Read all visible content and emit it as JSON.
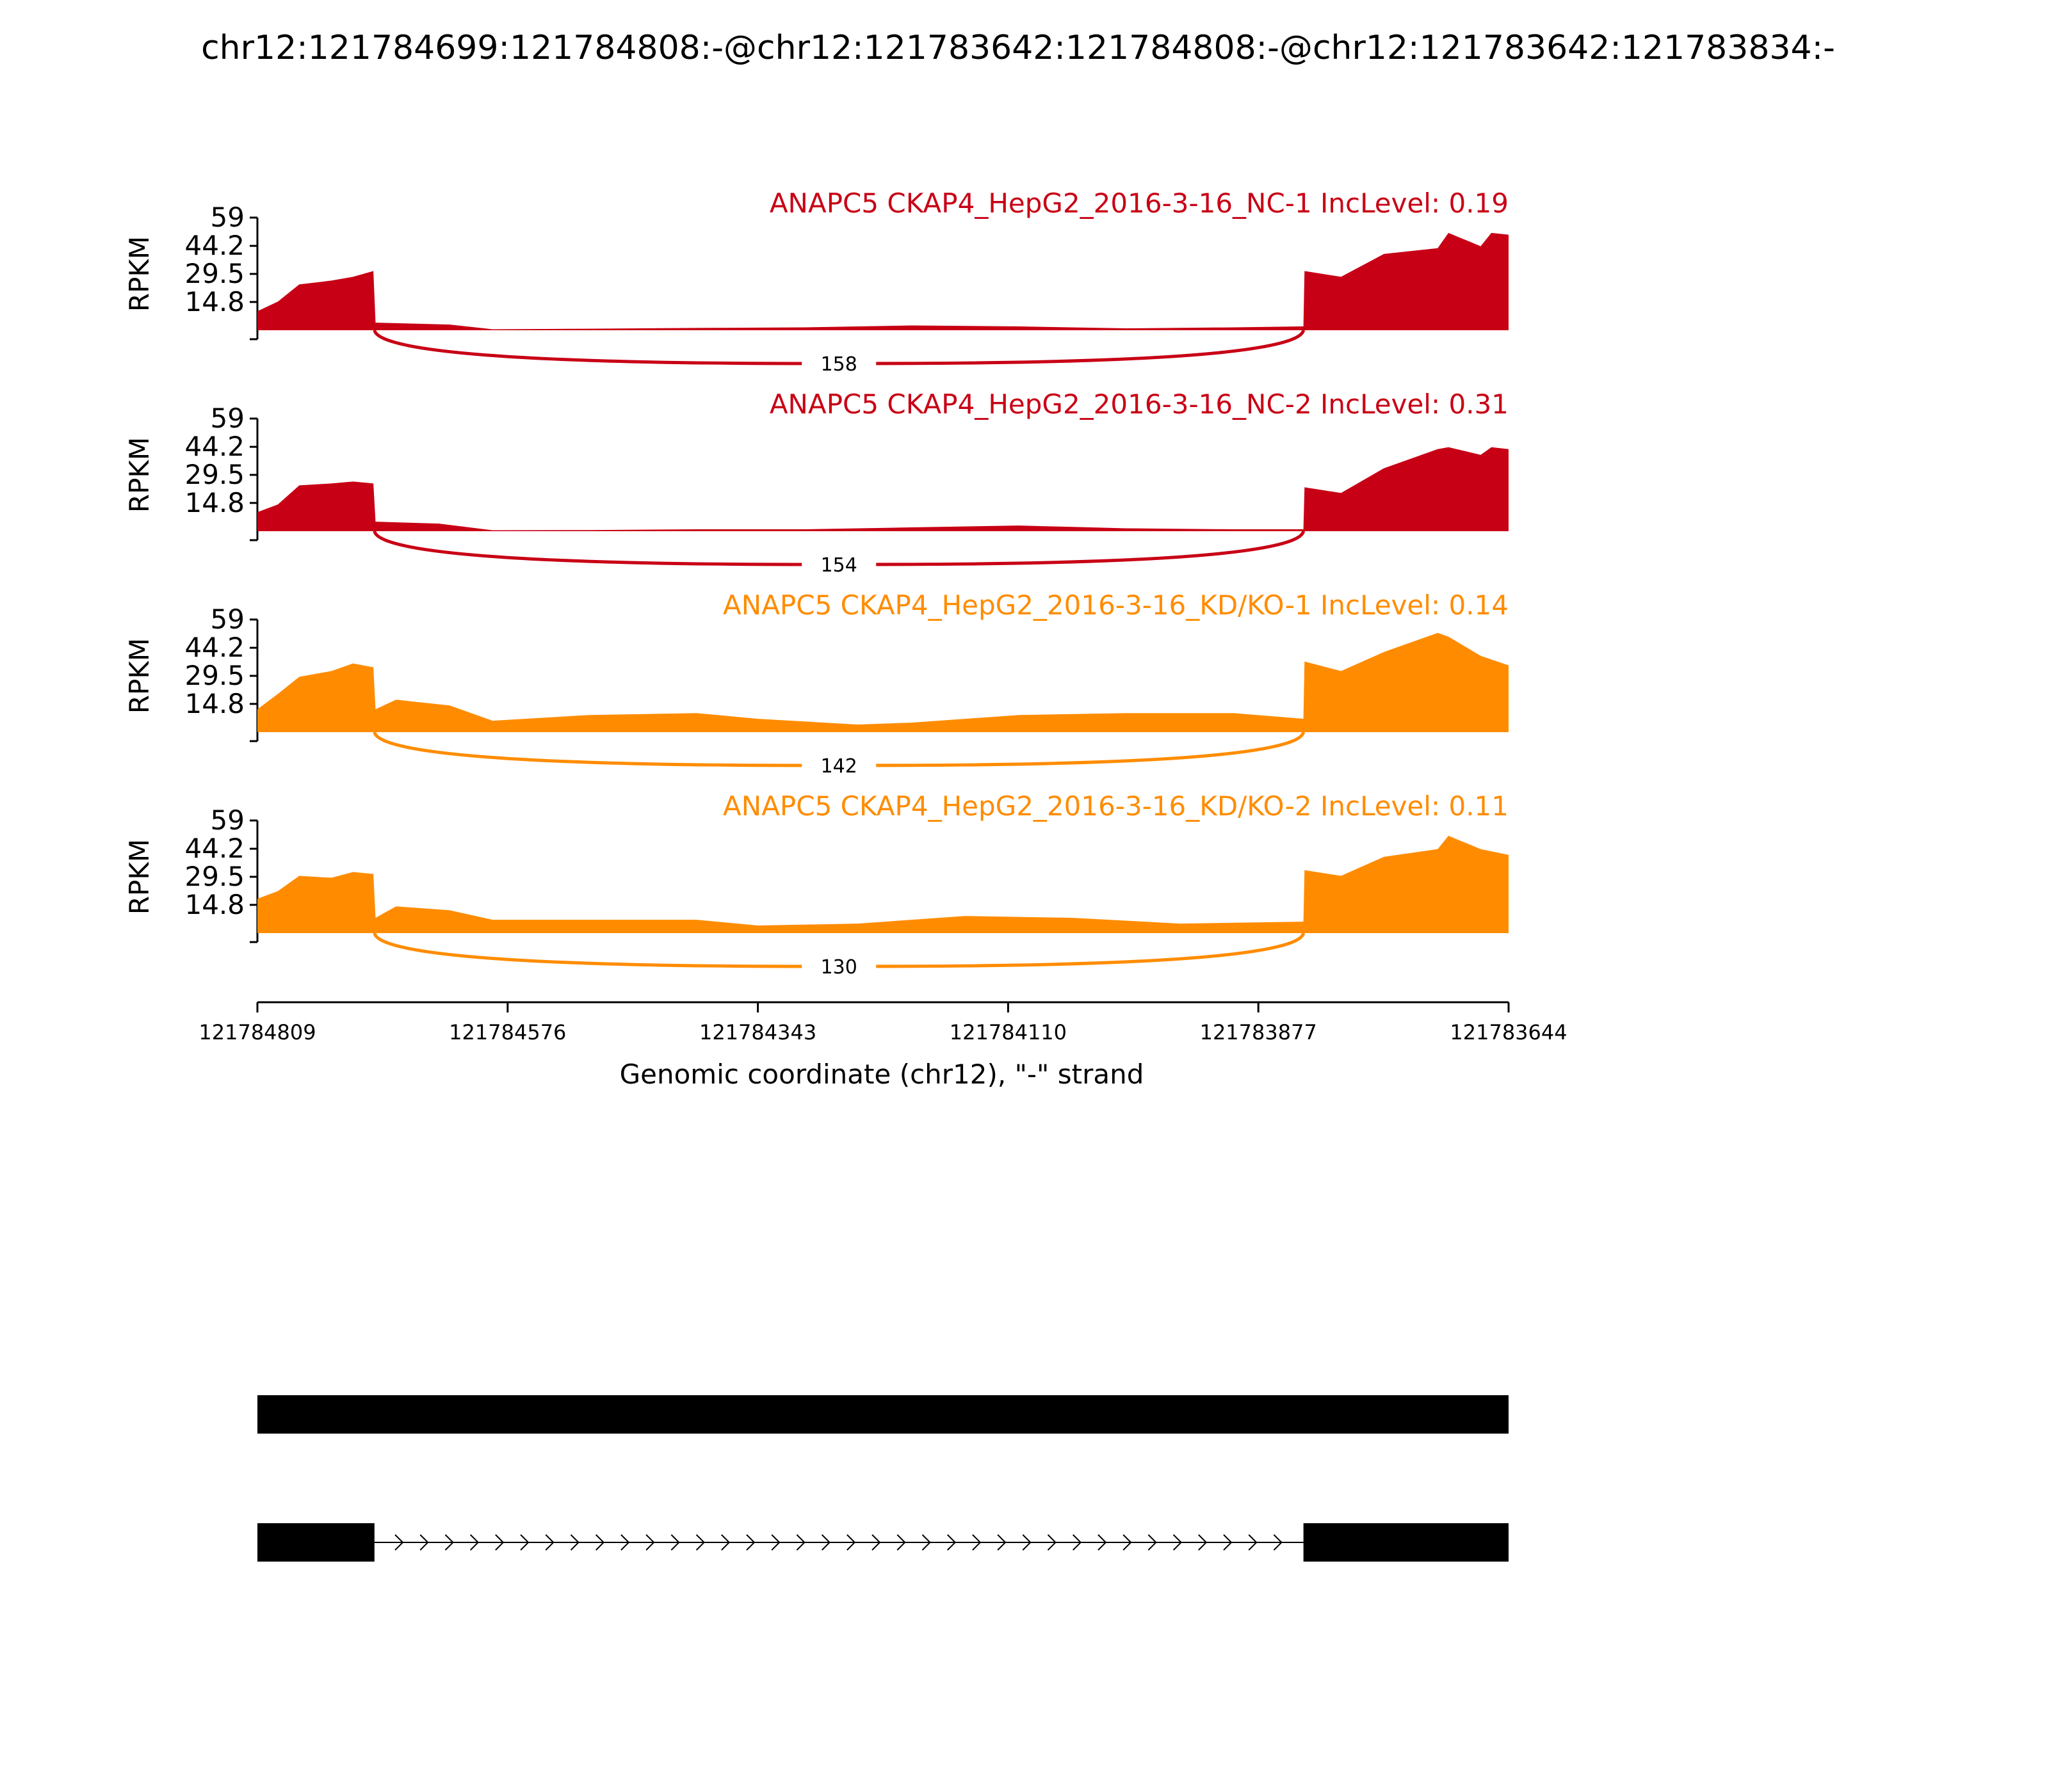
{
  "chart_data": {
    "type": "area",
    "title": "chr12:121784699:121784808:-@chr12:121783642:121784808:-@chr12:121783642:121783834:-",
    "xlabel": "Genomic coordinate (chr12), \"-\" strand",
    "ylabel": "RPKM",
    "x_ticks": [
      "121784809",
      "121784576",
      "121784343",
      "121784110",
      "121783877",
      "121783644"
    ],
    "x_range": [
      121784809,
      121783644
    ],
    "y_ticks": [
      "59",
      "44.2",
      "29.5",
      "14.8"
    ],
    "ylim": [
      0,
      59
    ],
    "series": [
      {
        "name": "ANAPC5 CKAP4_HepG2_2016-3-16_NC-1 IncLevel: 0.19",
        "color": "#c80015",
        "junction_count": "158",
        "points": [
          [
            121784809,
            10
          ],
          [
            121784790,
            15
          ],
          [
            121784770,
            24
          ],
          [
            121784740,
            26
          ],
          [
            121784720,
            28
          ],
          [
            121784701,
            31
          ],
          [
            121784699,
            4
          ],
          [
            121784630,
            3
          ],
          [
            121784590,
            0.5
          ],
          [
            121784500,
            0.8
          ],
          [
            121784400,
            1.2
          ],
          [
            121784300,
            1.5
          ],
          [
            121784200,
            2.5
          ],
          [
            121784100,
            2
          ],
          [
            121784000,
            1
          ],
          [
            121783900,
            1.5
          ],
          [
            121783835,
            2
          ],
          [
            121783834,
            31
          ],
          [
            121783800,
            28
          ],
          [
            121783760,
            40
          ],
          [
            121783710,
            43
          ],
          [
            121783700,
            51
          ],
          [
            121783670,
            44
          ],
          [
            121783660,
            51
          ],
          [
            121783644,
            50
          ]
        ]
      },
      {
        "name": "ANAPC5 CKAP4_HepG2_2016-3-16_NC-2 IncLevel: 0.31",
        "color": "#c80015",
        "junction_count": "154",
        "points": [
          [
            121784809,
            10
          ],
          [
            121784790,
            14
          ],
          [
            121784770,
            24
          ],
          [
            121784740,
            25
          ],
          [
            121784720,
            26
          ],
          [
            121784701,
            25
          ],
          [
            121784699,
            5
          ],
          [
            121784640,
            4
          ],
          [
            121784590,
            0.5
          ],
          [
            121784500,
            0.6
          ],
          [
            121784400,
            1
          ],
          [
            121784300,
            1
          ],
          [
            121784200,
            2
          ],
          [
            121784100,
            3
          ],
          [
            121784000,
            1.5
          ],
          [
            121783900,
            1
          ],
          [
            121783835,
            1
          ],
          [
            121783834,
            23
          ],
          [
            121783800,
            20
          ],
          [
            121783760,
            33
          ],
          [
            121783710,
            43
          ],
          [
            121783700,
            44
          ],
          [
            121783670,
            40
          ],
          [
            121783660,
            44
          ],
          [
            121783644,
            43
          ]
        ]
      },
      {
        "name": "ANAPC5 CKAP4_HepG2_2016-3-16_KD/KO-1 IncLevel: 0.14",
        "color": "#ff8c00",
        "junction_count": "142",
        "points": [
          [
            121784809,
            12
          ],
          [
            121784790,
            20
          ],
          [
            121784770,
            29
          ],
          [
            121784740,
            32
          ],
          [
            121784720,
            36
          ],
          [
            121784701,
            34
          ],
          [
            121784699,
            12
          ],
          [
            121784680,
            17
          ],
          [
            121784630,
            14
          ],
          [
            121784590,
            6
          ],
          [
            121784500,
            9
          ],
          [
            121784400,
            10
          ],
          [
            121784343,
            7
          ],
          [
            121784250,
            4
          ],
          [
            121784200,
            5
          ],
          [
            121784100,
            9
          ],
          [
            121784000,
            10
          ],
          [
            121783900,
            10
          ],
          [
            121783835,
            7
          ],
          [
            121783834,
            37
          ],
          [
            121783800,
            32
          ],
          [
            121783760,
            42
          ],
          [
            121783710,
            52
          ],
          [
            121783700,
            50
          ],
          [
            121783670,
            40
          ],
          [
            121783644,
            35
          ]
        ]
      },
      {
        "name": "ANAPC5 CKAP4_HepG2_2016-3-16_KD/KO-2 IncLevel: 0.11",
        "color": "#ff8c00",
        "junction_count": "130",
        "points": [
          [
            121784809,
            18
          ],
          [
            121784790,
            22
          ],
          [
            121784770,
            30
          ],
          [
            121784740,
            29
          ],
          [
            121784720,
            32
          ],
          [
            121784701,
            31
          ],
          [
            121784699,
            8
          ],
          [
            121784680,
            14
          ],
          [
            121784630,
            12
          ],
          [
            121784590,
            7
          ],
          [
            121784500,
            7
          ],
          [
            121784400,
            7
          ],
          [
            121784343,
            4
          ],
          [
            121784250,
            5
          ],
          [
            121784150,
            9
          ],
          [
            121784050,
            8
          ],
          [
            121783950,
            5
          ],
          [
            121783835,
            6
          ],
          [
            121783834,
            33
          ],
          [
            121783800,
            30
          ],
          [
            121783760,
            40
          ],
          [
            121783710,
            44
          ],
          [
            121783700,
            51
          ],
          [
            121783670,
            44
          ],
          [
            121783644,
            41
          ]
        ]
      }
    ],
    "isoforms": [
      {
        "exons": [
          [
            121784809,
            121783644
          ]
        ]
      },
      {
        "exons": [
          [
            121784809,
            121784700
          ],
          [
            121783835,
            121783644
          ]
        ]
      }
    ]
  }
}
